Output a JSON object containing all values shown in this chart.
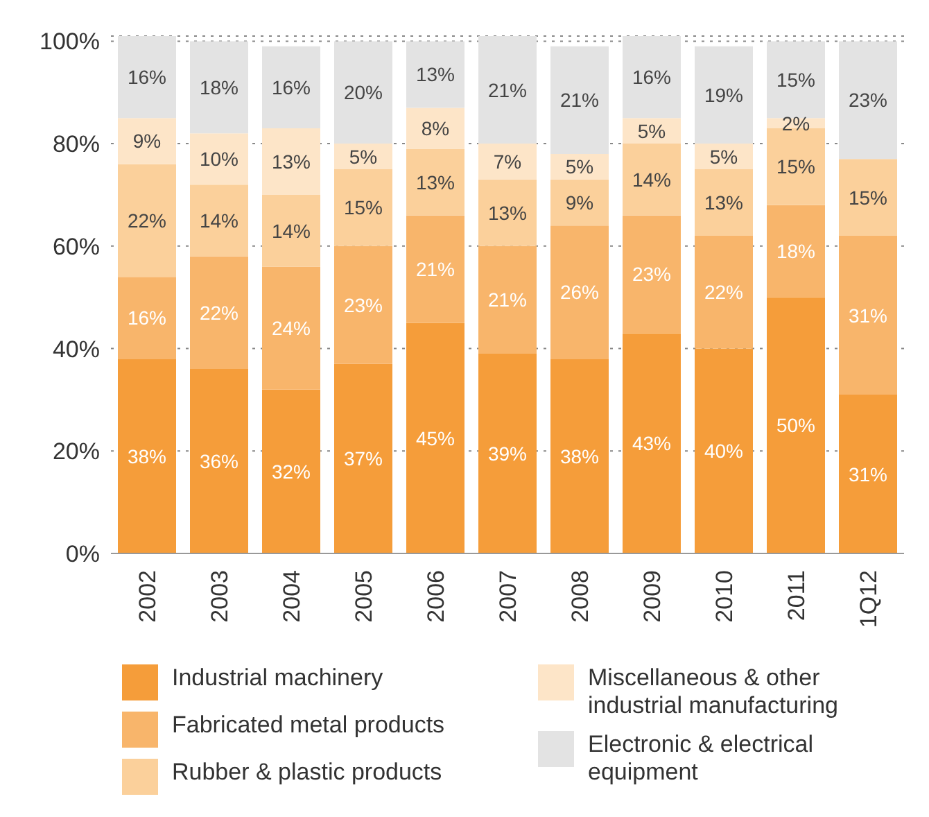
{
  "chart_data": {
    "type": "bar",
    "stacked": true,
    "categories": [
      "2002",
      "2003",
      "2004",
      "2005",
      "2006",
      "2007",
      "2008",
      "2009",
      "2010",
      "2011",
      "1Q12"
    ],
    "series": [
      {
        "name": "Industrial machinery",
        "color": "#f59d3a",
        "values": [
          38,
          36,
          32,
          37,
          45,
          39,
          38,
          43,
          40,
          50,
          31
        ],
        "value_labels": [
          "38%",
          "36%",
          "32%",
          "37%",
          "45%",
          "39%",
          "38%",
          "43%",
          "40%",
          "50%",
          "31%"
        ]
      },
      {
        "name": "Fabricated metal products",
        "color": "#f8b56b",
        "values": [
          16,
          22,
          24,
          23,
          21,
          21,
          26,
          23,
          22,
          18,
          31
        ],
        "value_labels": [
          "16%",
          "22%",
          "24%",
          "23%",
          "21%",
          "21%",
          "26%",
          "23%",
          "22%",
          "18%",
          "31%"
        ]
      },
      {
        "name": "Rubber & plastic products",
        "color": "#fbd09b",
        "values": [
          22,
          14,
          14,
          15,
          13,
          13,
          9,
          14,
          13,
          15,
          15
        ],
        "value_labels": [
          "22%",
          "14%",
          "14%",
          "15%",
          "13%",
          "13%",
          "9%",
          "14%",
          "13%",
          "15%",
          "15%"
        ]
      },
      {
        "name": "Miscellaneous & other industrial manufacturing",
        "color": "#fde5c8",
        "values": [
          9,
          10,
          13,
          5,
          8,
          7,
          5,
          5,
          5,
          2,
          null
        ],
        "value_labels": [
          "9%",
          "10%",
          "13%",
          "5%",
          "8%",
          "7%",
          "5%",
          "5%",
          "5%",
          "2%",
          null
        ]
      },
      {
        "name": "Electronic & electrical equipment",
        "color": "#e3e3e3",
        "values": [
          16,
          18,
          16,
          20,
          13,
          21,
          21,
          16,
          19,
          15,
          23
        ],
        "value_labels": [
          "16%",
          "18%",
          "16%",
          "20%",
          "13%",
          "21%",
          "21%",
          "16%",
          "19%",
          "15%",
          "23%"
        ]
      }
    ],
    "ylim": [
      0,
      101
    ],
    "yticks": [
      {
        "value": 0,
        "label": "0%"
      },
      {
        "value": 20,
        "label": "20%"
      },
      {
        "value": 40,
        "label": "40%"
      },
      {
        "value": 60,
        "label": "60%"
      },
      {
        "value": 80,
        "label": "80%"
      },
      {
        "value": 100,
        "label": "100%"
      }
    ],
    "grid": "y",
    "legend": "bottom"
  }
}
